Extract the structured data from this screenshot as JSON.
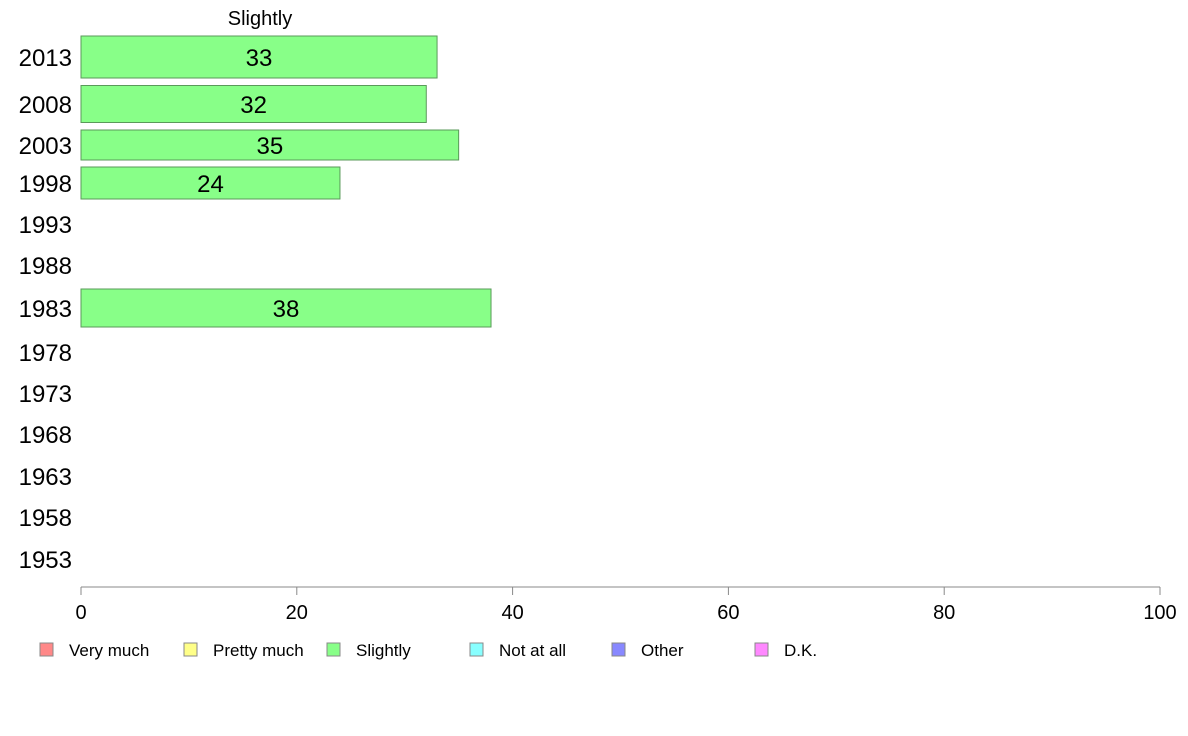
{
  "chart_data": {
    "type": "bar",
    "orientation": "horizontal",
    "title": "Slightly",
    "categories": [
      "2013",
      "2008",
      "2003",
      "1998",
      "1993",
      "1988",
      "1983",
      "1978",
      "1973",
      "1968",
      "1963",
      "1958",
      "1953"
    ],
    "series": [
      {
        "name": "Slightly",
        "color": "#88ff88",
        "values": [
          33,
          32,
          35,
          24,
          null,
          null,
          38,
          null,
          null,
          null,
          null,
          null,
          null
        ],
        "labels": [
          "33",
          "32",
          "35",
          "24",
          "",
          "",
          "38",
          "",
          "",
          "",
          "",
          "",
          ""
        ]
      }
    ],
    "xlim": [
      0,
      100
    ],
    "xticks": [
      "0",
      "20",
      "40",
      "60",
      "80",
      "100"
    ],
    "grid": false,
    "legend": {
      "placement": "bottom",
      "entries": [
        {
          "label": "Very much",
          "color": "#ff8888"
        },
        {
          "label": "Pretty much",
          "color": "#ffff88"
        },
        {
          "label": "Slightly",
          "color": "#88ff88"
        },
        {
          "label": "Not at all",
          "color": "#88ffff"
        },
        {
          "label": "Other",
          "color": "#8888ff"
        },
        {
          "label": "D.K.",
          "color": "#ff88ff"
        }
      ]
    }
  }
}
